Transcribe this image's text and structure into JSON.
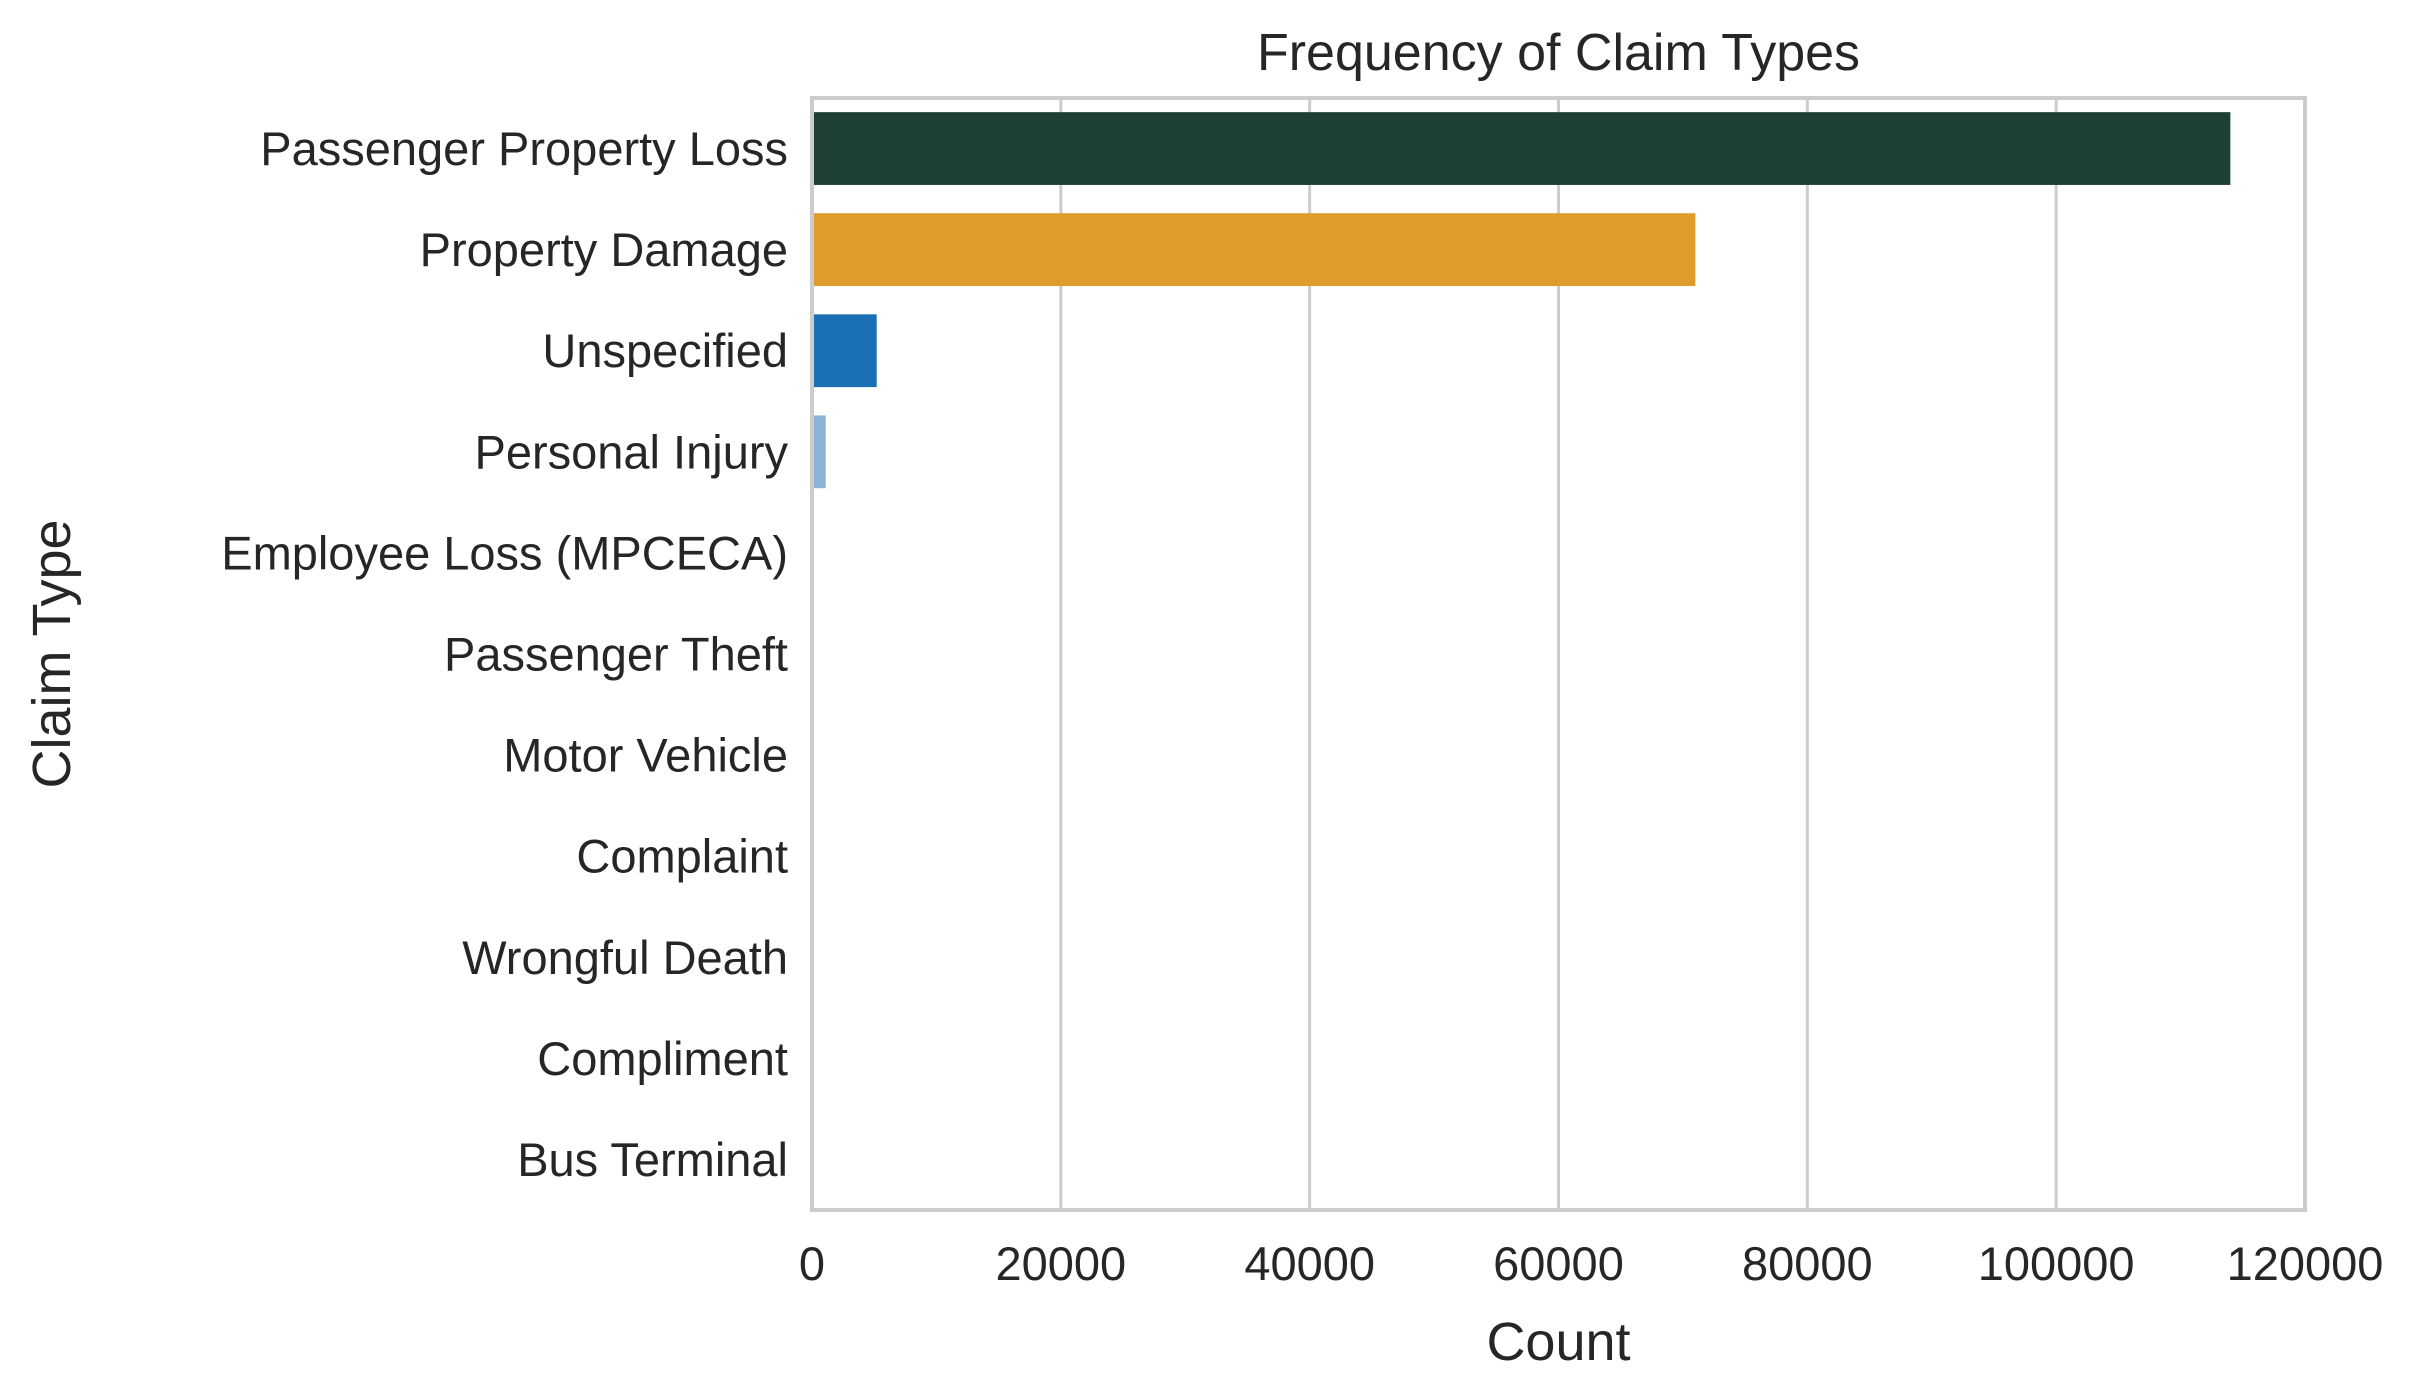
{
  "chart_data": {
    "type": "bar",
    "orientation": "horizontal",
    "title": "Frequency of Claim Types",
    "xlabel": "Count",
    "ylabel": "Claim Type",
    "xlim": [
      0,
      120000
    ],
    "xticks": [
      "0",
      "20000",
      "40000",
      "60000",
      "80000",
      "100000",
      "120000"
    ],
    "xtick_values": [
      0,
      20000,
      40000,
      60000,
      80000,
      100000,
      120000
    ],
    "grid": "vertical",
    "categories": [
      "Passenger Property Loss",
      "Property Damage",
      "Unspecified",
      "Personal Injury",
      "Employee Loss (MPCECA)",
      "Passenger Theft",
      "Motor Vehicle",
      "Complaint",
      "Wrongful Death",
      "Compliment",
      "Bus Terminal"
    ],
    "values": [
      114000,
      71000,
      5200,
      1100,
      30,
      20,
      10,
      5,
      4,
      3,
      1
    ],
    "colors": [
      "#1f4037",
      "#e09b2d",
      "#1a6fb5",
      "#8ab3d8",
      "#1f4037",
      "#e09b2d",
      "#1a6fb5",
      "#8ab3d8",
      "#1f4037",
      "#e09b2d",
      "#1a6fb5"
    ]
  }
}
